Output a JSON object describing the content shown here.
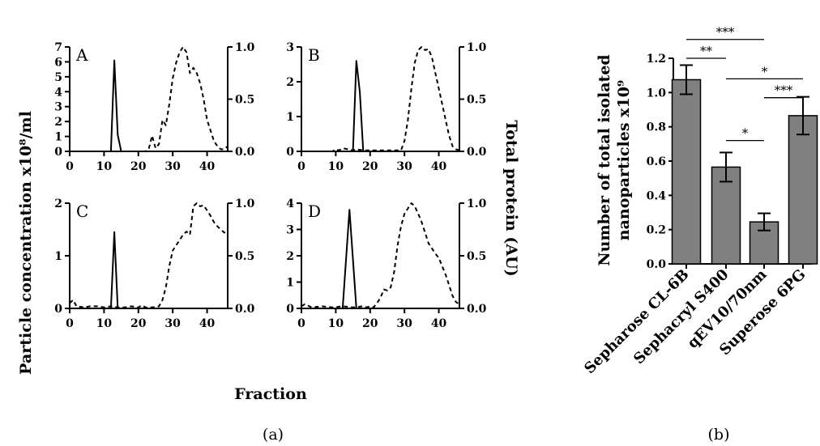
{
  "figure": {
    "panel_a_caption": "(a)",
    "panel_b_caption": "(b)",
    "shared_x_label": "Fraction",
    "shared_y_left_label": "Particle concentration x10⁸/ml",
    "shared_y_right_label": "Total protein (AU)"
  },
  "chart_data": [
    {
      "type": "line",
      "panel": "A",
      "xlim": [
        0,
        46
      ],
      "xticks": [
        0,
        10,
        20,
        30,
        40
      ],
      "ylim_left": [
        0,
        7
      ],
      "yticks_left": [
        0,
        1,
        2,
        3,
        4,
        5,
        6,
        7
      ],
      "ylim_right": [
        0,
        1
      ],
      "yticks_right": [
        "0.0",
        "0.5",
        "1.0"
      ],
      "series": [
        {
          "style": "solid",
          "axis": "left",
          "x": [
            0,
            12,
            13,
            14,
            15,
            46
          ],
          "y": [
            0,
            0,
            6.1,
            1.1,
            0,
            0
          ]
        },
        {
          "style": "dashed",
          "axis": "right",
          "x": [
            0,
            22,
            23,
            24,
            25,
            26,
            27,
            28,
            29,
            30,
            31,
            32,
            33,
            34,
            35,
            36,
            37,
            38,
            39,
            40,
            41,
            42,
            43,
            44,
            45,
            46
          ],
          "y": [
            0,
            0,
            0.02,
            0.15,
            0.03,
            0.07,
            0.3,
            0.25,
            0.45,
            0.7,
            0.85,
            0.95,
            1.0,
            0.95,
            0.75,
            0.8,
            0.75,
            0.65,
            0.5,
            0.3,
            0.2,
            0.1,
            0.05,
            0.02,
            0.02,
            0.05
          ]
        }
      ]
    },
    {
      "type": "line",
      "panel": "B",
      "xlim": [
        0,
        46
      ],
      "xticks": [
        0,
        10,
        20,
        30,
        40
      ],
      "ylim_left": [
        0,
        3
      ],
      "yticks_left": [
        0,
        1,
        2,
        3
      ],
      "ylim_right": [
        0,
        1
      ],
      "yticks_right": [
        "0.0",
        "0.5",
        "1.0"
      ],
      "series": [
        {
          "style": "solid",
          "axis": "left",
          "x": [
            0,
            15,
            16,
            17,
            18,
            46
          ],
          "y": [
            0,
            0,
            2.6,
            1.7,
            0,
            0
          ]
        },
        {
          "style": "dashed",
          "axis": "right",
          "x": [
            0,
            9,
            10,
            11,
            12,
            15,
            16,
            18,
            20,
            25,
            29,
            30,
            31,
            32,
            33,
            34,
            35,
            36,
            37,
            38,
            39,
            40,
            41,
            42,
            43,
            44,
            45,
            46
          ],
          "y": [
            0,
            0,
            0.02,
            0.01,
            0.03,
            0.01,
            0.02,
            0.01,
            0.01,
            0.01,
            0.01,
            0.1,
            0.3,
            0.6,
            0.85,
            0.97,
            1.0,
            0.97,
            0.98,
            0.9,
            0.75,
            0.6,
            0.45,
            0.3,
            0.15,
            0.05,
            0.02,
            0.01
          ]
        }
      ]
    },
    {
      "type": "line",
      "panel": "C",
      "xlim": [
        0,
        46
      ],
      "xticks": [
        0,
        10,
        20,
        30,
        40
      ],
      "ylim_left": [
        0,
        2
      ],
      "yticks_left": [
        0,
        1,
        2
      ],
      "ylim_right": [
        0,
        1
      ],
      "yticks_right": [
        "0.0",
        "0.5",
        "1.0"
      ],
      "series": [
        {
          "style": "solid",
          "axis": "left",
          "x": [
            0,
            12,
            13,
            14,
            46
          ],
          "y": [
            0,
            0,
            1.45,
            0,
            0
          ]
        },
        {
          "style": "dashed",
          "axis": "right",
          "x": [
            0,
            1,
            2,
            4,
            6,
            8,
            10,
            12,
            14,
            16,
            18,
            20,
            21,
            22,
            24,
            26,
            27,
            28,
            29,
            30,
            31,
            32,
            33,
            34,
            35,
            36,
            37,
            38,
            39,
            40,
            41,
            42,
            43,
            44,
            45,
            46
          ],
          "y": [
            0.05,
            0.08,
            0.02,
            0.01,
            0.02,
            0.02,
            0.01,
            0.02,
            0.01,
            0.01,
            0.02,
            0.01,
            0.03,
            0.01,
            0.01,
            0.02,
            0.08,
            0.2,
            0.4,
            0.55,
            0.6,
            0.65,
            0.7,
            0.73,
            0.7,
            0.97,
            1.0,
            0.97,
            0.98,
            0.93,
            0.88,
            0.82,
            0.78,
            0.75,
            0.72,
            0.73
          ]
        }
      ]
    },
    {
      "type": "line",
      "panel": "D",
      "xlim": [
        0,
        46
      ],
      "xticks": [
        0,
        10,
        20,
        30,
        40
      ],
      "ylim_left": [
        0,
        4
      ],
      "yticks_left": [
        0,
        1,
        2,
        3,
        4
      ],
      "ylim_right": [
        0,
        1
      ],
      "yticks_right": [
        "0.0",
        "0.5",
        "1.0"
      ],
      "series": [
        {
          "style": "solid",
          "axis": "left",
          "x": [
            0,
            12,
            14,
            16,
            46
          ],
          "y": [
            0,
            0,
            3.75,
            0,
            0
          ]
        },
        {
          "style": "dashed",
          "axis": "right",
          "x": [
            0,
            1,
            3,
            6,
            9,
            12,
            15,
            18,
            19,
            20,
            21,
            22,
            23,
            24,
            25,
            26,
            27,
            28,
            29,
            30,
            31,
            32,
            33,
            34,
            35,
            36,
            37,
            38,
            39,
            40,
            41,
            42,
            43,
            44,
            45,
            46
          ],
          "y": [
            0.02,
            0.04,
            0.01,
            0.02,
            0.01,
            0.02,
            0.01,
            0.02,
            0.01,
            0.02,
            0.01,
            0.05,
            0.1,
            0.18,
            0.17,
            0.2,
            0.35,
            0.6,
            0.78,
            0.9,
            0.95,
            1.0,
            0.97,
            0.9,
            0.82,
            0.72,
            0.62,
            0.57,
            0.52,
            0.48,
            0.4,
            0.32,
            0.22,
            0.12,
            0.06,
            0.04
          ]
        }
      ]
    },
    {
      "type": "bar",
      "panel": "b",
      "ylabel": "Number of total isolated nanoparticles x10⁹",
      "ylim": [
        0,
        1.2
      ],
      "yticks": [
        "0.0",
        "0.2",
        "0.4",
        "0.6",
        "0.8",
        "1.0",
        "1.2"
      ],
      "categories": [
        "Sepharose CL-6B",
        "Sephacryl S400",
        "qEV10/70nm",
        "Superose 6PG"
      ],
      "values": [
        1.075,
        0.565,
        0.245,
        0.865
      ],
      "errors": [
        0.085,
        0.085,
        0.05,
        0.11
      ],
      "bar_color": "#808080",
      "significance": [
        {
          "from": 0,
          "to": 2,
          "y": 1.31,
          "label": "***"
        },
        {
          "from": 0,
          "to": 1,
          "y": 1.2,
          "label": "**"
        },
        {
          "from": 1,
          "to": 3,
          "y": 1.08,
          "label": "*"
        },
        {
          "from": 2,
          "to": 3,
          "y": 0.97,
          "label": "***"
        },
        {
          "from": 1,
          "to": 2,
          "y": 0.72,
          "label": "*"
        }
      ]
    }
  ]
}
